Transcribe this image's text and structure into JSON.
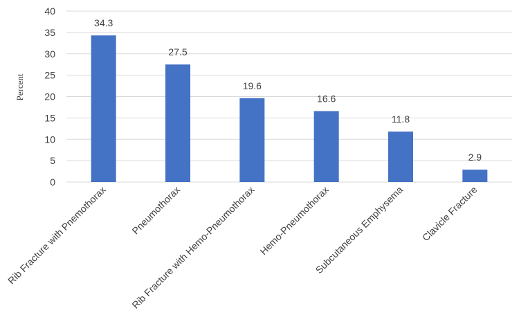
{
  "chart_data": {
    "type": "bar",
    "categories": [
      "Rib Fracture with Pnemothorax",
      "Pneumothorax",
      "Rib Fracture with Hemo-Pneumothorax",
      "Hemo-Pneumothorax",
      "Subcutaneous Emphysema",
      "Clavicle Fracture"
    ],
    "values": [
      34.3,
      27.5,
      19.6,
      16.6,
      11.8,
      2.9
    ],
    "data_labels": [
      "34.3",
      "27.5",
      "19.6",
      "16.6",
      "11.8",
      "2.9"
    ],
    "ylabel": "Percent",
    "xlabel": "",
    "title": "",
    "ylim": [
      0,
      40
    ],
    "yticks": [
      0,
      5,
      10,
      15,
      20,
      25,
      30,
      35,
      40
    ],
    "grid": true,
    "legend": "none",
    "bar_color": "#4472C4"
  }
}
